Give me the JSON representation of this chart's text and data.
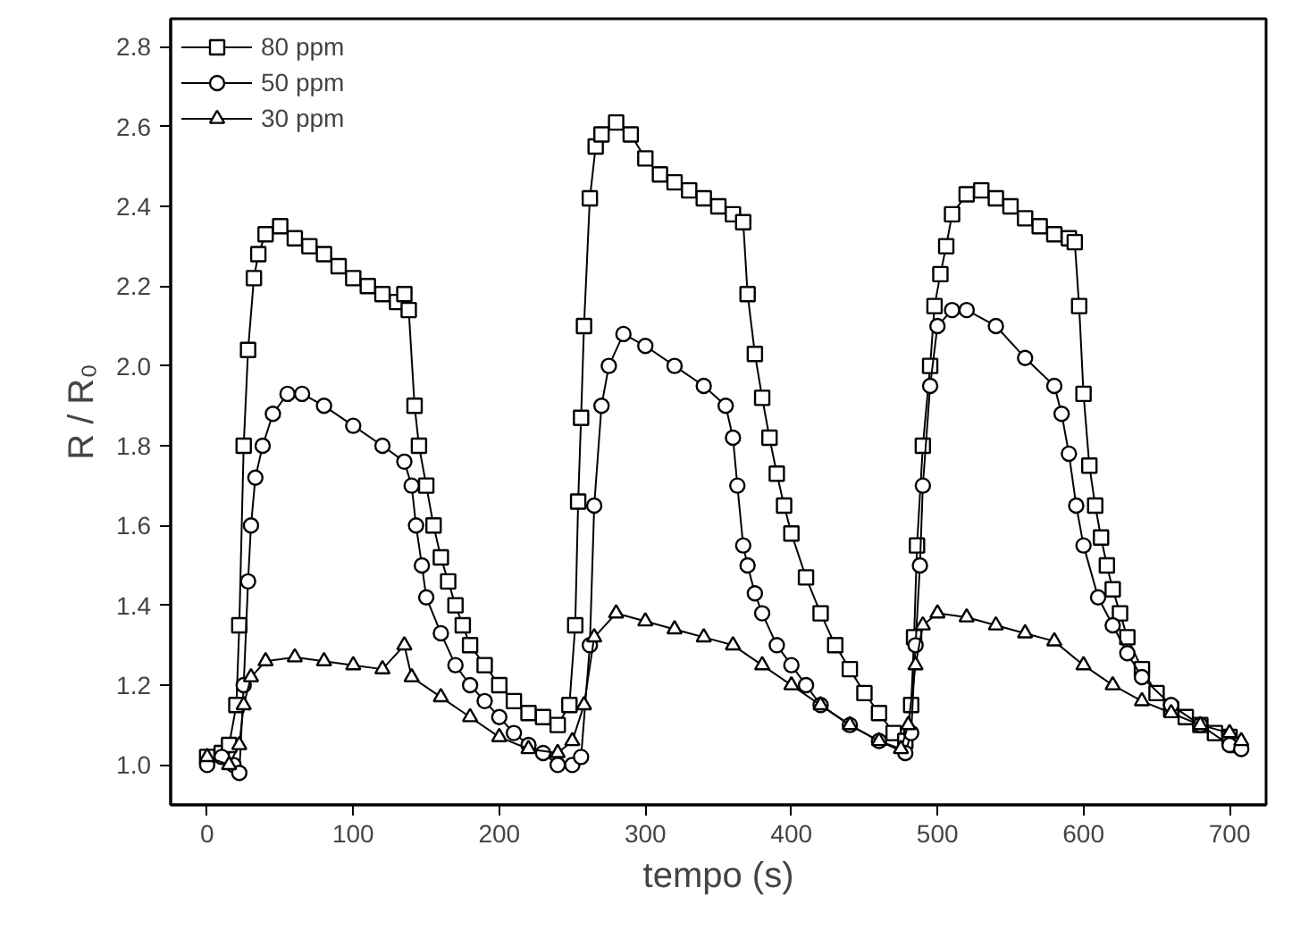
{
  "chart_data": {
    "type": "line",
    "xlabel": "tempo (s)",
    "ylabel": "R / R₀",
    "xlim": [
      -25,
      725
    ],
    "ylim": [
      0.9,
      2.87
    ],
    "xticks": [
      0,
      100,
      200,
      300,
      400,
      500,
      600,
      700
    ],
    "yticks": [
      {
        "value": 1.0,
        "label": "1.0"
      },
      1.2,
      1.4,
      1.6,
      1.8,
      {
        "value": 2.0,
        "label": "2.0"
      },
      2.2,
      2.4,
      2.6,
      2.8
    ],
    "grid": false,
    "legend": "top left",
    "series": [
      {
        "name": "80 ppm",
        "color": "#000000",
        "marker": "square",
        "x": [
          0,
          10,
          15,
          20,
          22,
          25,
          28,
          32,
          35,
          40,
          50,
          60,
          70,
          80,
          90,
          100,
          110,
          120,
          130,
          135,
          138,
          142,
          145,
          150,
          155,
          160,
          165,
          170,
          175,
          180,
          190,
          200,
          210,
          220,
          230,
          240,
          248,
          252,
          254,
          256,
          258,
          262,
          266,
          270,
          280,
          290,
          300,
          310,
          320,
          330,
          340,
          350,
          360,
          367,
          370,
          375,
          380,
          385,
          390,
          395,
          400,
          410,
          420,
          430,
          440,
          450,
          460,
          470,
          478,
          482,
          484,
          486,
          490,
          495,
          498,
          502,
          506,
          510,
          520,
          530,
          540,
          550,
          560,
          570,
          580,
          590,
          594,
          597,
          600,
          604,
          608,
          612,
          616,
          620,
          625,
          630,
          640,
          650,
          660,
          670,
          680,
          690,
          700,
          705
        ],
        "values": [
          1.02,
          1.03,
          1.05,
          1.15,
          1.35,
          1.8,
          2.04,
          2.22,
          2.28,
          2.33,
          2.35,
          2.32,
          2.3,
          2.28,
          2.25,
          2.22,
          2.2,
          2.18,
          2.16,
          2.18,
          2.14,
          1.9,
          1.8,
          1.7,
          1.6,
          1.52,
          1.46,
          1.4,
          1.35,
          1.3,
          1.25,
          1.2,
          1.16,
          1.13,
          1.12,
          1.1,
          1.15,
          1.35,
          1.66,
          1.87,
          2.1,
          2.42,
          2.55,
          2.58,
          2.61,
          2.58,
          2.52,
          2.48,
          2.46,
          2.44,
          2.42,
          2.4,
          2.38,
          2.36,
          2.18,
          2.03,
          1.92,
          1.82,
          1.73,
          1.65,
          1.58,
          1.47,
          1.38,
          1.3,
          1.24,
          1.18,
          1.13,
          1.08,
          1.06,
          1.15,
          1.32,
          1.55,
          1.8,
          2.0,
          2.15,
          2.23,
          2.3,
          2.38,
          2.43,
          2.44,
          2.42,
          2.4,
          2.37,
          2.35,
          2.33,
          2.32,
          2.31,
          2.15,
          1.93,
          1.75,
          1.65,
          1.57,
          1.5,
          1.44,
          1.38,
          1.32,
          1.24,
          1.18,
          1.14,
          1.12,
          1.1,
          1.08,
          1.07,
          1.05
        ]
      },
      {
        "name": "50 ppm",
        "color": "#000000",
        "marker": "circle",
        "x": [
          0,
          10,
          18,
          22,
          25,
          28,
          30,
          33,
          38,
          45,
          55,
          65,
          80,
          100,
          120,
          135,
          140,
          143,
          147,
          150,
          160,
          170,
          180,
          190,
          200,
          210,
          220,
          230,
          240,
          250,
          256,
          262,
          265,
          270,
          275,
          285,
          300,
          320,
          340,
          355,
          360,
          363,
          367,
          370,
          375,
          380,
          390,
          400,
          410,
          420,
          440,
          460,
          478,
          482,
          485,
          488,
          490,
          495,
          500,
          510,
          520,
          540,
          560,
          580,
          585,
          590,
          595,
          600,
          610,
          620,
          630,
          640,
          660,
          680,
          700,
          708
        ],
        "values": [
          1.0,
          1.02,
          1.0,
          0.98,
          1.2,
          1.46,
          1.6,
          1.72,
          1.8,
          1.88,
          1.93,
          1.93,
          1.9,
          1.85,
          1.8,
          1.76,
          1.7,
          1.6,
          1.5,
          1.42,
          1.33,
          1.25,
          1.2,
          1.16,
          1.12,
          1.08,
          1.05,
          1.03,
          1.0,
          1.0,
          1.02,
          1.3,
          1.65,
          1.9,
          2.0,
          2.08,
          2.05,
          2.0,
          1.95,
          1.9,
          1.82,
          1.7,
          1.55,
          1.5,
          1.43,
          1.38,
          1.3,
          1.25,
          1.2,
          1.15,
          1.1,
          1.06,
          1.03,
          1.08,
          1.3,
          1.5,
          1.7,
          1.95,
          2.1,
          2.14,
          2.14,
          2.1,
          2.02,
          1.95,
          1.88,
          1.78,
          1.65,
          1.55,
          1.42,
          1.35,
          1.28,
          1.22,
          1.15,
          1.1,
          1.05,
          1.04
        ]
      },
      {
        "name": "30 ppm",
        "color": "#000000",
        "marker": "triangle",
        "x": [
          0,
          15,
          22,
          25,
          30,
          40,
          60,
          80,
          100,
          120,
          135,
          140,
          160,
          180,
          200,
          220,
          240,
          250,
          258,
          265,
          280,
          300,
          320,
          340,
          360,
          380,
          400,
          420,
          440,
          460,
          475,
          480,
          485,
          490,
          500,
          520,
          540,
          560,
          580,
          600,
          620,
          640,
          660,
          680,
          700,
          708
        ],
        "values": [
          1.02,
          1.0,
          1.05,
          1.15,
          1.22,
          1.26,
          1.27,
          1.26,
          1.25,
          1.24,
          1.3,
          1.22,
          1.17,
          1.12,
          1.07,
          1.04,
          1.03,
          1.06,
          1.15,
          1.32,
          1.38,
          1.36,
          1.34,
          1.32,
          1.3,
          1.25,
          1.2,
          1.15,
          1.1,
          1.06,
          1.04,
          1.1,
          1.25,
          1.35,
          1.38,
          1.37,
          1.35,
          1.33,
          1.31,
          1.25,
          1.2,
          1.16,
          1.13,
          1.1,
          1.08,
          1.06
        ]
      }
    ]
  }
}
